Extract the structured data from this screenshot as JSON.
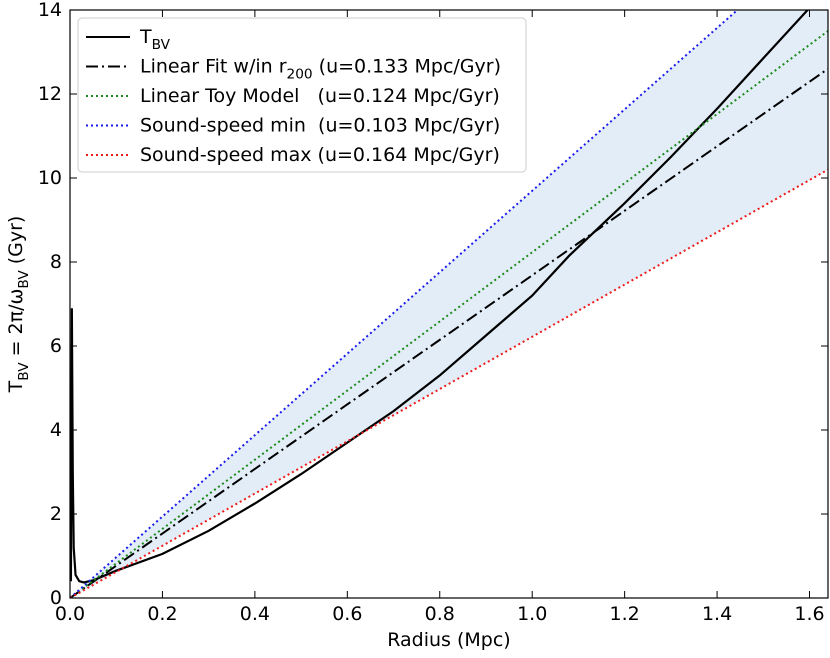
{
  "chart_data": {
    "type": "line",
    "xlabel": "Radius (Mpc)",
    "ylabel": "T_{BV} = 2π/ω_{BV} (Gyr)",
    "xlim": [
      0,
      1.64
    ],
    "ylim": [
      0,
      14
    ],
    "xticks": [
      {
        "value": 0,
        "label": "0.0"
      },
      0.2,
      0.4,
      0.6,
      0.8,
      {
        "value": 1,
        "label": "1.0"
      },
      1.2,
      1.4,
      1.6
    ],
    "yticks": [
      0,
      2,
      4,
      6,
      8,
      10,
      12,
      14
    ],
    "legend": "upper-left",
    "shade": {
      "color": "#e3edf7",
      "between": [
        3,
        4
      ]
    },
    "series": [
      {
        "name": "T_{BV}",
        "color": "#000000",
        "style": "solid",
        "x": [
          0.002,
          0.004,
          0.006,
          0.008,
          0.012,
          0.02,
          0.03,
          0.05,
          0.1,
          0.2,
          0.3,
          0.4,
          0.5,
          0.6,
          0.7,
          0.8,
          0.9,
          1.0,
          1.08,
          1.2,
          1.3,
          1.4,
          1.5,
          1.6
        ],
        "values": [
          0.4,
          6.9,
          3.0,
          1.2,
          0.55,
          0.4,
          0.37,
          0.42,
          0.65,
          1.05,
          1.6,
          2.25,
          2.95,
          3.7,
          4.45,
          5.3,
          6.25,
          7.2,
          8.15,
          9.4,
          10.5,
          11.65,
          12.85,
          14.05
        ]
      },
      {
        "name": "Linear Fit w/in r_{200} (u=0.133 Mpc/Gyr)",
        "color": "#000000",
        "style": "dashdot",
        "x": [
          0,
          1.64
        ],
        "values": [
          0,
          12.6
        ]
      },
      {
        "name": "Linear Toy Model   (u=0.124 Mpc/Gyr)",
        "color": "#1a8a1a",
        "style": "dotted",
        "x": [
          0,
          1.64
        ],
        "values": [
          0,
          13.5
        ]
      },
      {
        "name": "Sound-speed min  (u=0.103 Mpc/Gyr)",
        "color": "#1a1aee",
        "style": "dotted",
        "x": [
          0,
          1.64
        ],
        "values": [
          0,
          15.9
        ]
      },
      {
        "name": "Sound-speed max (u=0.164 Mpc/Gyr)",
        "color": "#ee1a1a",
        "style": "dotted",
        "x": [
          0,
          1.64
        ],
        "values": [
          0,
          10.2
        ]
      }
    ]
  }
}
